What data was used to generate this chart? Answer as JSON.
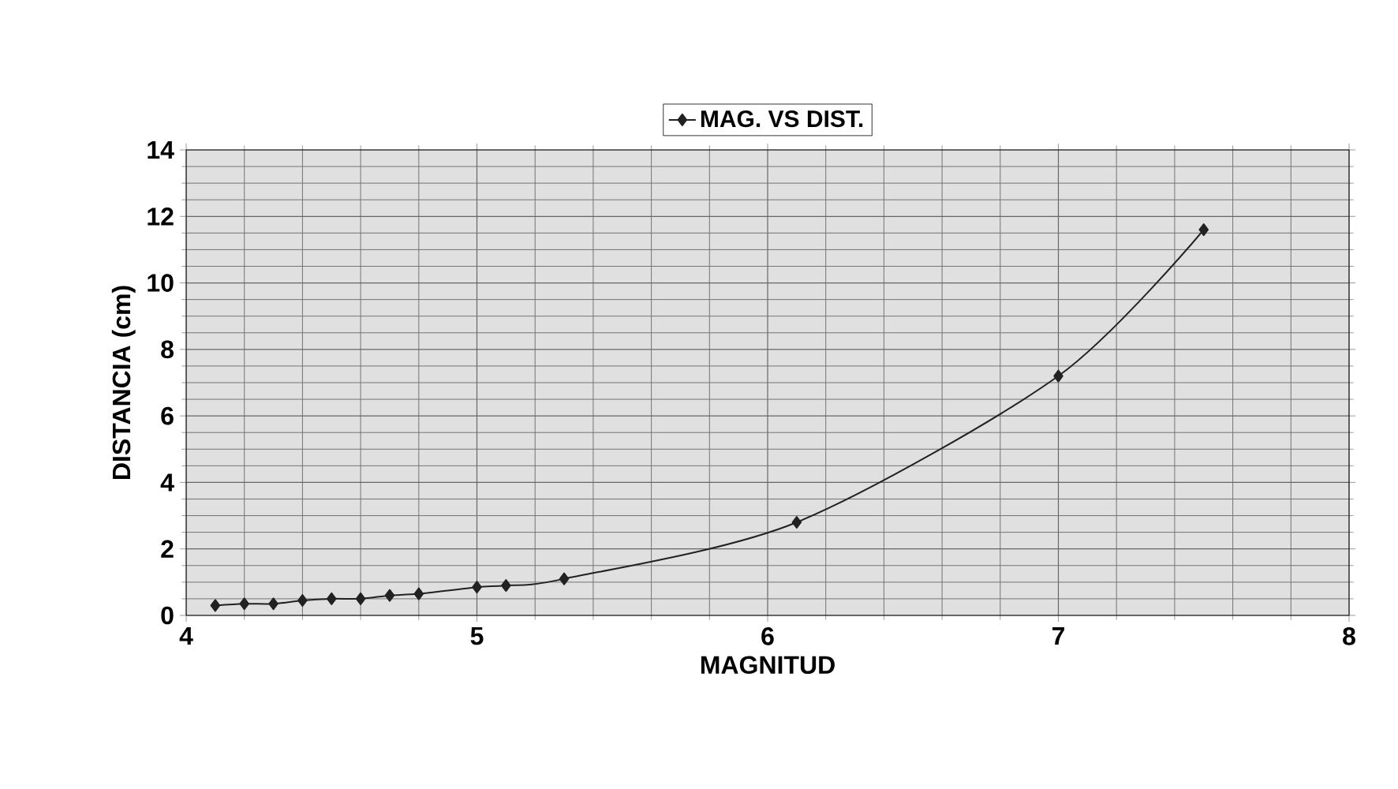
{
  "chart_data": {
    "type": "line",
    "xlabel": "MAGNITUD",
    "ylabel": "DISTANCIA (cm)",
    "series": [
      {
        "name": "MAG. VS DIST.",
        "color": "#222222",
        "x": [
          4.1,
          4.2,
          4.3,
          4.4,
          4.5,
          4.6,
          4.7,
          4.8,
          5.0,
          5.1,
          5.3,
          6.1,
          7.0,
          7.5
        ],
        "values": [
          0.3,
          0.35,
          0.35,
          0.45,
          0.5,
          0.5,
          0.6,
          0.65,
          0.85,
          0.9,
          1.1,
          2.8,
          7.2,
          11.6
        ]
      }
    ],
    "xlim": [
      4,
      8
    ],
    "xticks": [
      4,
      5,
      6,
      7,
      8
    ],
    "ylim": [
      0,
      14
    ],
    "yticks": [
      0,
      2,
      4,
      6,
      8,
      10,
      12,
      14
    ],
    "grid": true,
    "legend": "top",
    "marker": "diamond",
    "line_style": "solid"
  }
}
